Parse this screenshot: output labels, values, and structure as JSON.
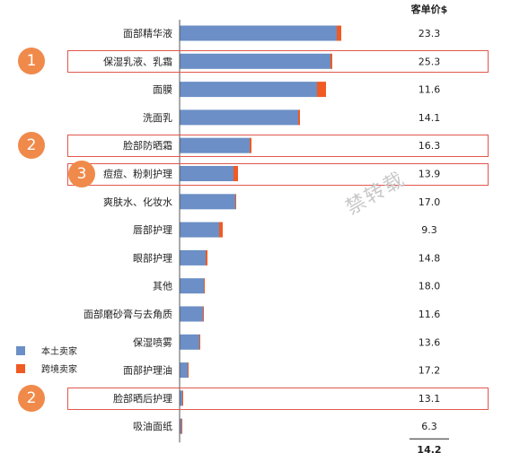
{
  "chart_data": {
    "type": "bar",
    "orientation": "horizontal",
    "stacked": true,
    "column_header": "客单价$",
    "categories": [
      "面部精华液",
      "保湿乳液、乳霜",
      "面膜",
      "洗面乳",
      "脸部防晒霜",
      "痘痘、粉刺护理",
      "爽肤水、化妆水",
      "唇部护理",
      "眼部护理",
      "其他",
      "面部磨砂膏与去角质",
      "保湿喷雾",
      "面部护理油",
      "脸部晒后护理",
      "吸油面纸"
    ],
    "unit_prices": [
      "23.3",
      "25.3",
      "11.6",
      "14.1",
      "16.3",
      "13.9",
      "17.0",
      "9.3",
      "14.8",
      "18.0",
      "11.6",
      "13.6",
      "17.2",
      "13.1",
      "6.3"
    ],
    "total_price": "14.2",
    "series": [
      {
        "name": "本土卖家",
        "color": "#6b8fc6",
        "values": [
          175,
          168,
          153,
          132,
          78,
          60,
          62,
          44,
          29,
          27,
          26,
          22,
          9,
          3,
          2
        ]
      },
      {
        "name": "跨境卖家",
        "color": "#f05a23",
        "values": [
          5,
          2,
          10,
          2,
          2,
          5,
          1,
          4,
          2,
          1,
          1,
          1,
          1,
          1,
          1
        ]
      }
    ],
    "highlights": [
      {
        "row": 1,
        "badge": "1"
      },
      {
        "row": 4,
        "badge": "2"
      },
      {
        "row": 5,
        "badge": "3"
      },
      {
        "row": 13,
        "badge": "2"
      }
    ],
    "grid": false,
    "legend_position": "bottom-left",
    "watermark": "禁转载"
  }
}
